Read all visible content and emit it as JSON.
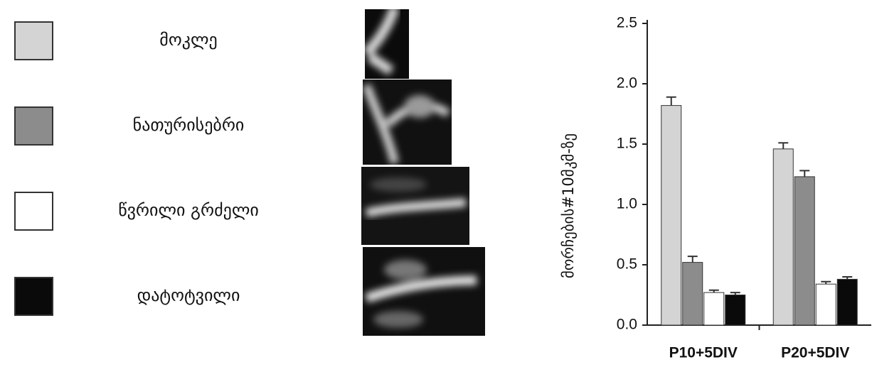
{
  "chart_data": {
    "type": "bar",
    "y_label": "მორჩების#10მკმ-ზე",
    "categories": [
      "P10+5DIV",
      "P20+5DIV"
    ],
    "series": [
      {
        "name": "მოკლე",
        "color": "#d4d4d4",
        "values": [
          1.82,
          1.46
        ],
        "errors": [
          0.07,
          0.05
        ]
      },
      {
        "name": "ნათურისებრი",
        "color": "#8c8c8c",
        "values": [
          0.52,
          1.23
        ],
        "errors": [
          0.05,
          0.05
        ]
      },
      {
        "name": "წვრილი გრძელი",
        "color": "#ffffff",
        "values": [
          0.27,
          0.34
        ],
        "errors": [
          0.02,
          0.02
        ]
      },
      {
        "name": "დატოტვილი",
        "color": "#0a0a0a",
        "values": [
          0.25,
          0.38
        ],
        "errors": [
          0.02,
          0.02
        ]
      }
    ],
    "ylim": [
      0,
      2.5
    ],
    "yticks": [
      {
        "value": 0,
        "label": "0.0"
      },
      0.5,
      {
        "value": 1,
        "label": "1.0"
      },
      1.5,
      {
        "value": 2,
        "label": "2.0"
      },
      2.5
    ]
  }
}
